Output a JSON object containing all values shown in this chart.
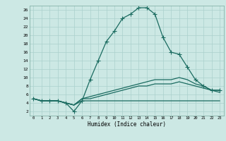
{
  "xlabel": "Humidex (Indice chaleur)",
  "bg_color": "#cce8e4",
  "grid_color": "#aad0cc",
  "line_color": "#1a6b60",
  "x_ticks": [
    0,
    1,
    2,
    3,
    4,
    5,
    6,
    7,
    8,
    9,
    10,
    11,
    12,
    13,
    14,
    15,
    16,
    17,
    18,
    19,
    20,
    21,
    22,
    23
  ],
  "y_ticks": [
    2,
    4,
    6,
    8,
    10,
    12,
    14,
    16,
    18,
    20,
    22,
    24,
    26
  ],
  "ylim": [
    1.0,
    27.0
  ],
  "xlim": [
    -0.5,
    23.5
  ],
  "line1_x": [
    0,
    1,
    2,
    3,
    4,
    5,
    6,
    7,
    8,
    9,
    10,
    11,
    12,
    13,
    14,
    15,
    16,
    17,
    18,
    19,
    20,
    21,
    22,
    23
  ],
  "line1_y": [
    5,
    4.5,
    4.5,
    4.5,
    4,
    2,
    4.5,
    9.5,
    14,
    18.5,
    21,
    24,
    25,
    26.5,
    26.5,
    25,
    19.5,
    16,
    15.5,
    12.5,
    9.5,
    8,
    7,
    7
  ],
  "line2_x": [
    0,
    1,
    2,
    3,
    4,
    5,
    6,
    7,
    8,
    9,
    10,
    11,
    12,
    13,
    14,
    15,
    16,
    17,
    18,
    19,
    20,
    21,
    22,
    23
  ],
  "line2_y": [
    5,
    4.5,
    4.5,
    4.5,
    4,
    3.5,
    5,
    5.5,
    6,
    6.5,
    7,
    7.5,
    8,
    8.5,
    9,
    9.5,
    9.5,
    9.5,
    10,
    9.5,
    8.5,
    8,
    7,
    7
  ],
  "line3_x": [
    0,
    1,
    2,
    3,
    4,
    5,
    6,
    7,
    8,
    9,
    10,
    11,
    12,
    13,
    14,
    15,
    16,
    17,
    18,
    19,
    20,
    21,
    22,
    23
  ],
  "line3_y": [
    5,
    4.5,
    4.5,
    4.5,
    4,
    3.5,
    5,
    5,
    5.5,
    6,
    6.5,
    7,
    7.5,
    8,
    8,
    8.5,
    8.5,
    8.5,
    9,
    8.5,
    8,
    7.5,
    7,
    6.5
  ],
  "line4_x": [
    0,
    1,
    2,
    3,
    4,
    5,
    6,
    7,
    8,
    9,
    10,
    11,
    12,
    13,
    14,
    15,
    16,
    17,
    18,
    19,
    20,
    21,
    22,
    23
  ],
  "line4_y": [
    5,
    4.5,
    4.5,
    4.5,
    4,
    3.5,
    4.5,
    4.5,
    4.5,
    4.5,
    4.5,
    4.5,
    4.5,
    4.5,
    4.5,
    4.5,
    4.5,
    4.5,
    4.5,
    4.5,
    4.5,
    4.5,
    4.5,
    4.5
  ]
}
